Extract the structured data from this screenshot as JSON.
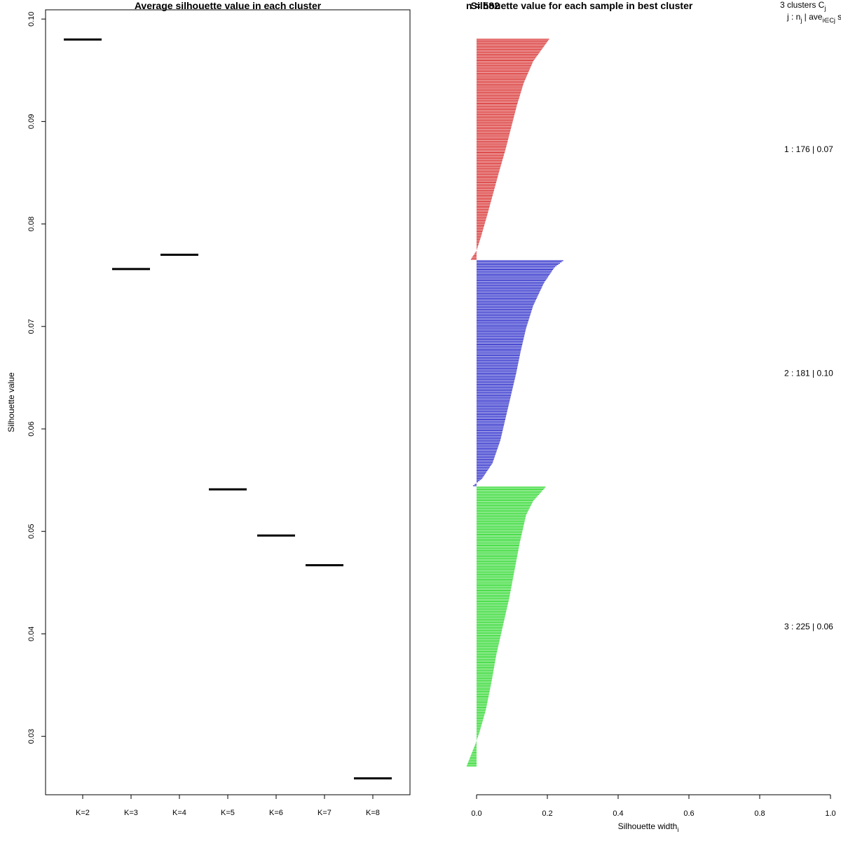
{
  "chart_data": [
    {
      "type": "line",
      "title": "Average silhouette value in each cluster",
      "xlabel": "",
      "ylabel": "Silhouette value",
      "categories": [
        "K=2",
        "K=3",
        "K=4",
        "K=5",
        "K=6",
        "K=7",
        "K=8"
      ],
      "values": [
        0.098,
        0.0756,
        0.077,
        0.0541,
        0.0496,
        0.0467,
        0.0259
      ],
      "yticks": [
        "0.03",
        "0.04",
        "0.05",
        "0.06",
        "0.07",
        "0.08",
        "0.09",
        "0.10"
      ],
      "ylim": [
        0.0243,
        0.1009
      ],
      "grid": false,
      "box": true,
      "colors": {
        "segment": "#000000",
        "frame": "#000000"
      }
    },
    {
      "type": "bar",
      "orientation": "horizontal",
      "title": "Silhouette value for each sample in best cluster",
      "overlapping_subtitle": "n = 582",
      "xlabel": "Silhouette width",
      "xlabel_subscript": "i",
      "xlim": [
        0.0,
        1.0
      ],
      "xticks": [
        "0.0",
        "0.2",
        "0.4",
        "0.6",
        "0.8",
        "1.0"
      ],
      "header_line1": "3  clusters  C",
      "header_line1_subscript": "j",
      "header_line2": "j :  n",
      "header_line2_subscript": "j",
      "header_line2_middle": " | ave",
      "header_line2_subscript2": "i∈Cj",
      "header_line2_end": "  s",
      "header_line2_end_subscript": "i",
      "clusters": [
        {
          "id": 1,
          "n": 176,
          "label": "1 :  176  |  0.07",
          "color": "#d00000",
          "profile_x": [
            0.0,
            0.1,
            0.2,
            0.3,
            0.4,
            0.5,
            0.6,
            0.7,
            0.8,
            0.9,
            0.96,
            1.0
          ],
          "profile_y": [
            0.205,
            0.16,
            0.133,
            0.114,
            0.098,
            0.082,
            0.064,
            0.047,
            0.03,
            0.012,
            0.0,
            -0.016
          ]
        },
        {
          "id": 2,
          "n": 181,
          "label": "2 :  181  |  0.10",
          "color": "#0000c0",
          "profile_x": [
            0.0,
            0.03,
            0.1,
            0.2,
            0.3,
            0.4,
            0.5,
            0.6,
            0.7,
            0.8,
            0.9,
            0.97,
            1.0
          ],
          "profile_y": [
            0.245,
            0.22,
            0.19,
            0.16,
            0.14,
            0.125,
            0.112,
            0.097,
            0.082,
            0.067,
            0.045,
            0.015,
            -0.01
          ]
        },
        {
          "id": 3,
          "n": 225,
          "label": "3 :  225  |  0.06",
          "color": "#00d000",
          "profile_x": [
            0.0,
            0.05,
            0.1,
            0.2,
            0.3,
            0.4,
            0.5,
            0.6,
            0.7,
            0.8,
            0.88,
            0.92,
            1.0
          ],
          "profile_y": [
            0.195,
            0.16,
            0.14,
            0.122,
            0.107,
            0.092,
            0.074,
            0.056,
            0.042,
            0.026,
            0.008,
            -0.003,
            -0.028
          ]
        }
      ]
    }
  ]
}
